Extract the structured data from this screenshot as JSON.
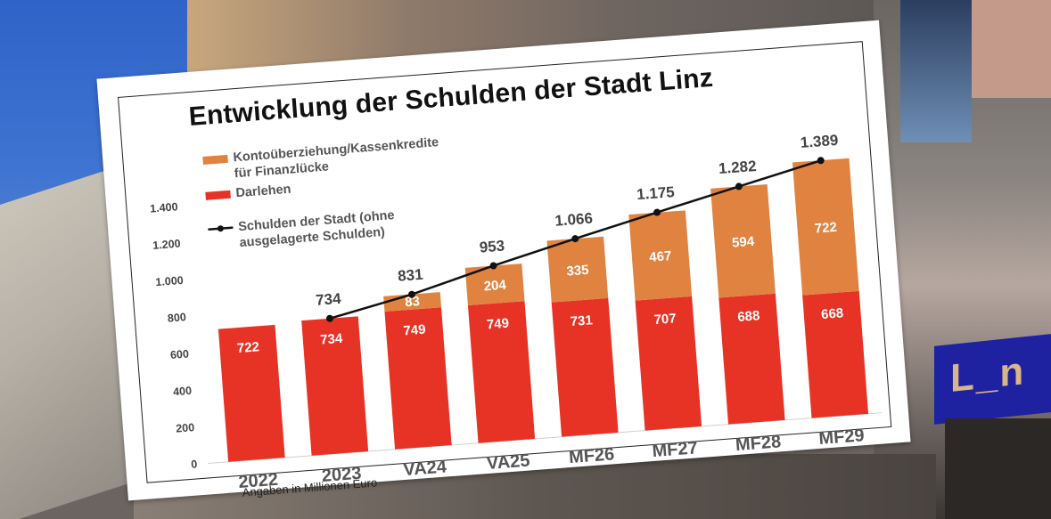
{
  "chart_data": {
    "type": "bar",
    "stacked": true,
    "title": "Entwicklung der Schulden der Stadt Linz",
    "footnote": "Angaben in Millionen Euro",
    "xlabel": "",
    "ylabel": "",
    "ylim": [
      0,
      1400
    ],
    "yticks": [
      0,
      200,
      400,
      600,
      800,
      1000,
      1200,
      1400
    ],
    "ytick_labels": [
      "0",
      "200",
      "400",
      "600",
      "800",
      "1.000",
      "1.200",
      "1.400"
    ],
    "grid": false,
    "legend_position": "top-left",
    "categories": [
      "2022",
      "2023",
      "VA24",
      "VA25",
      "MF26",
      "MF27",
      "MF28",
      "MF29"
    ],
    "series": [
      {
        "name": "Darlehen",
        "type": "bar",
        "color": "#e63325",
        "values": [
          722,
          734,
          749,
          749,
          731,
          707,
          688,
          668
        ],
        "labels": [
          "722",
          "734",
          "749",
          "749",
          "731",
          "707",
          "688",
          "668"
        ]
      },
      {
        "name": "Kontoüberziehung/Kassenkredite für Finanzlücke",
        "type": "bar",
        "color": "#e08340",
        "values": [
          0,
          0,
          83,
          204,
          335,
          467,
          594,
          722
        ],
        "labels": [
          "",
          "",
          "83",
          "204",
          "335",
          "467",
          "594",
          "722"
        ]
      },
      {
        "name": "Schulden der Stadt (ohne ausgelagerte Schulden)",
        "type": "line",
        "color": "#111111",
        "values": [
          null,
          734,
          831,
          953,
          1066,
          1175,
          1282,
          1389
        ],
        "labels": [
          "",
          "734",
          "831",
          "953",
          "1.066",
          "1.175",
          "1.282",
          "1.389"
        ]
      }
    ]
  },
  "legend": {
    "kassenkredite_line1": "Kontoüberziehung/Kassenkredite",
    "kassenkredite_line2": "für Finanzlücke",
    "darlehen": "Darlehen",
    "schulden_line1": "Schulden der Stadt (ohne",
    "schulden_line2": "ausgelagerte Schulden)"
  },
  "background": {
    "shop_sign_text": "L_n"
  }
}
